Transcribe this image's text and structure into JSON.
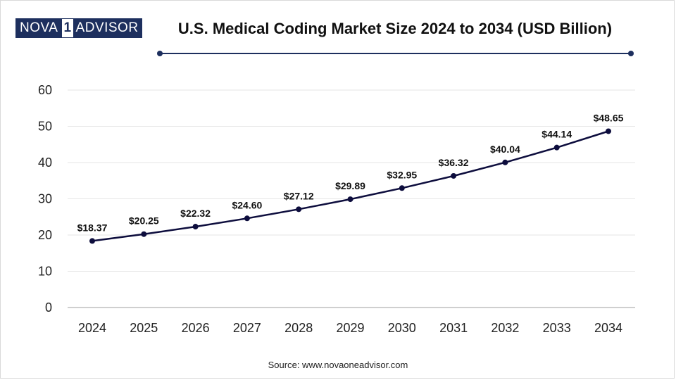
{
  "logo": {
    "part1": "NOVA",
    "part2": "1",
    "part3": "ADVISOR"
  },
  "source": "Source: www.novaoneadvisor.com",
  "colors": {
    "line": "#0d0d3d",
    "accent": "#1d2f5e",
    "grid": "#e6e6e6"
  },
  "chart_data": {
    "type": "line",
    "title": "U.S. Medical Coding Market Size 2024 to 2034 (USD Billion)",
    "xlabel": "",
    "ylabel": "",
    "ylim": [
      0,
      60
    ],
    "yticks": [
      "0",
      "10",
      "20",
      "30",
      "40",
      "50",
      "60"
    ],
    "ytick_values": [
      0,
      10,
      20,
      30,
      40,
      50,
      60
    ],
    "categories": [
      "2024",
      "2025",
      "2026",
      "2027",
      "2028",
      "2029",
      "2030",
      "2031",
      "2032",
      "2033",
      "2034"
    ],
    "series": [
      {
        "name": "U.S. Medical Coding Market Size",
        "values": [
          18.37,
          20.25,
          22.32,
          24.6,
          27.12,
          29.89,
          32.95,
          36.32,
          40.04,
          44.14,
          48.65
        ],
        "labels": [
          "$18.37",
          "$20.25",
          "$22.32",
          "$24.60",
          "$27.12",
          "$29.89",
          "$32.95",
          "$36.32",
          "$40.04",
          "$44.14",
          "$48.65"
        ]
      }
    ],
    "grid": true,
    "legend": "none"
  }
}
